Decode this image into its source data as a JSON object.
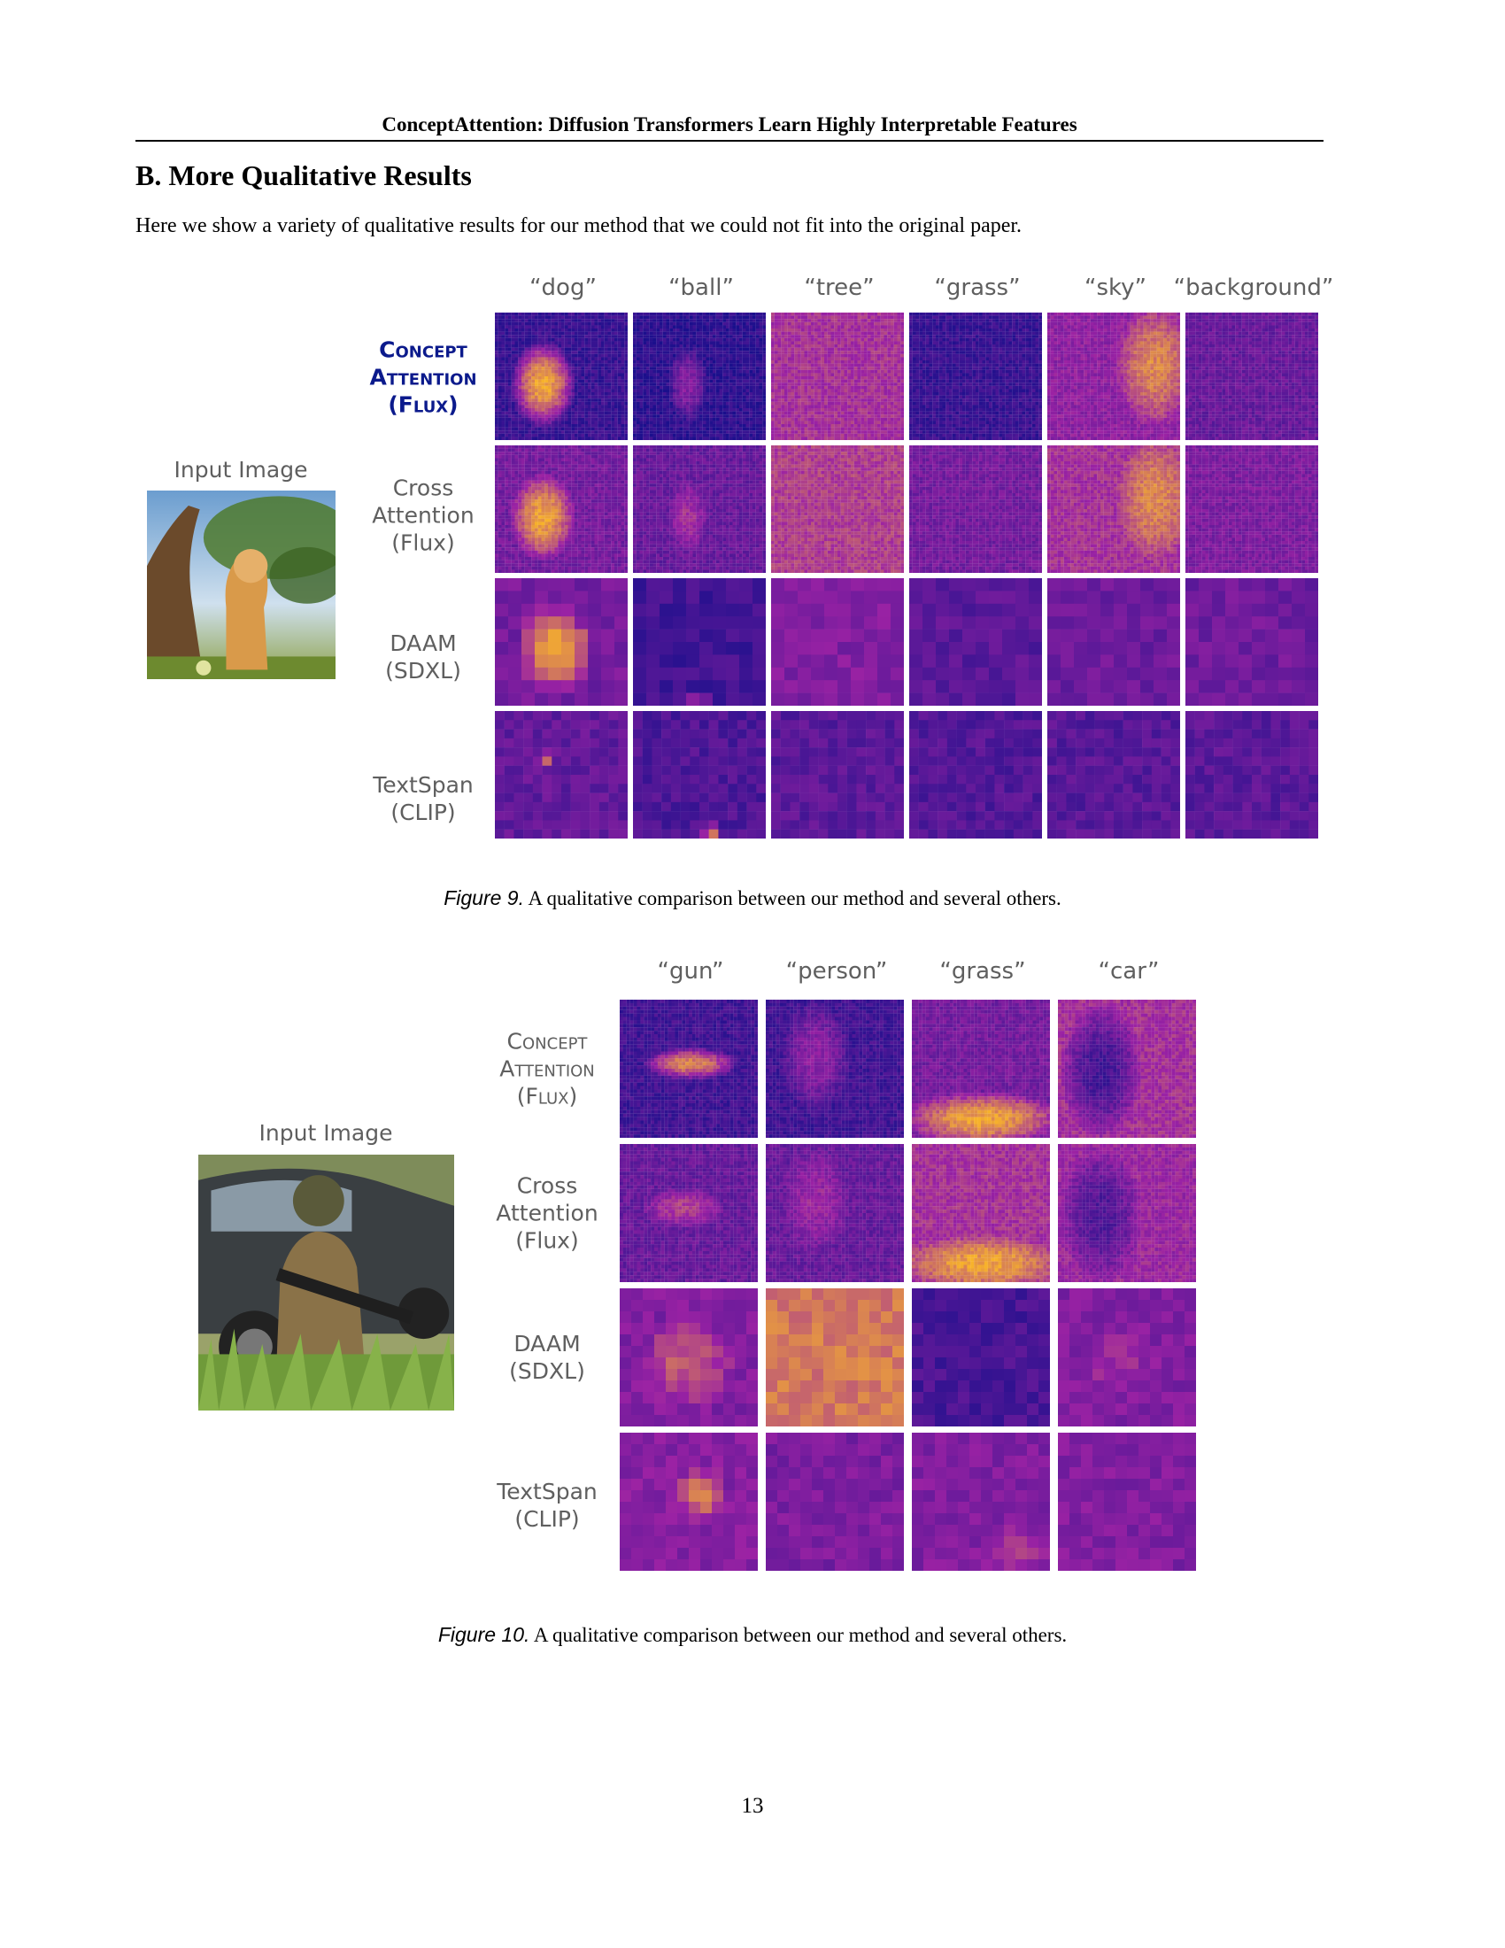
{
  "running_head": "ConceptAttention: Diffusion Transformers Learn Highly Interpretable Features",
  "section_title": "B. More Qualitative Results",
  "intro": "Here we show a variety of qualitative results for our method that we could not fit into the original paper.",
  "figure9": {
    "input_label": "Input Image",
    "concepts": [
      "“dog”",
      "“ball”",
      "“tree”",
      "“grass”",
      "“sky”",
      "“background”"
    ],
    "rows": [
      {
        "lines": [
          "Concept",
          "Attention",
          "(Flux)"
        ]
      },
      {
        "lines": [
          "Cross",
          "Attention",
          "(Flux)"
        ]
      },
      {
        "lines": [
          "DAAM",
          "(SDXL)"
        ]
      },
      {
        "lines": [
          "TextSpan",
          "(CLIP)"
        ]
      }
    ],
    "caption_label": "Figure 9.",
    "caption_text": "A qualitative comparison between our method and several others."
  },
  "figure10": {
    "input_label": "Input Image",
    "concepts": [
      "“gun”",
      "“person”",
      "“grass”",
      "“car”"
    ],
    "rows": [
      {
        "lines": [
          "Concept",
          "Attention",
          "(Flux)"
        ]
      },
      {
        "lines": [
          "Cross",
          "Attention",
          "(Flux)"
        ]
      },
      {
        "lines": [
          "DAAM",
          "(SDXL)"
        ]
      },
      {
        "lines": [
          "TextSpan",
          "(CLIP)"
        ]
      }
    ],
    "caption_label": "Figure 10.",
    "caption_text": "A qualitative comparison between our method and several others."
  },
  "page_number": "13",
  "colors": {
    "heat_low": "#1a0f8c",
    "heat_mid": "#9b22a4",
    "heat_high": "#f7b22b",
    "label_gray": "#5f5f5f",
    "concept_blue": "#0b1a8c"
  }
}
